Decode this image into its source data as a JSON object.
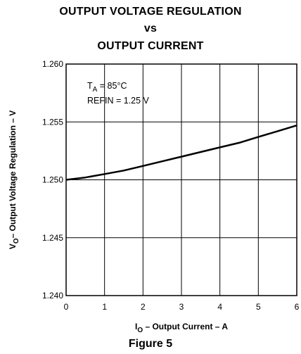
{
  "title_lines": [
    "OUTPUT VOLTAGE REGULATION",
    "vs",
    "OUTPUT CURRENT"
  ],
  "caption": "Figure 5",
  "chart_data": {
    "type": "line",
    "title": "OUTPUT VOLTAGE REGULATION vs OUTPUT CURRENT",
    "xlabel": {
      "main": "I",
      "sub": "O",
      "rest": " – Output Current – A"
    },
    "ylabel": {
      "main": "V",
      "sub": "O",
      "rest": "– Output Voltage Regulation – V"
    },
    "xlim": [
      0,
      6
    ],
    "ylim": [
      1.24,
      1.26
    ],
    "x_ticks": [
      "0",
      "1",
      "2",
      "3",
      "4",
      "5",
      "6"
    ],
    "y_ticks": [
      "1.240",
      "1.245",
      "1.250",
      "1.255",
      "1.260"
    ],
    "grid": true,
    "annotations": [
      {
        "main": "T",
        "sub": "A",
        "rest": " = 85°C"
      },
      {
        "main": "REFIN = 1.25 V",
        "sub": "",
        "rest": ""
      }
    ],
    "series": [
      {
        "x": [
          0,
          0.5,
          1,
          1.5,
          2,
          2.5,
          3,
          3.5,
          4,
          4.5,
          5,
          5.5,
          6
        ],
        "values": [
          1.25,
          1.2502,
          1.2505,
          1.2508,
          1.2512,
          1.2516,
          1.252,
          1.2524,
          1.2528,
          1.2532,
          1.2537,
          1.2542,
          1.2547
        ]
      }
    ]
  }
}
